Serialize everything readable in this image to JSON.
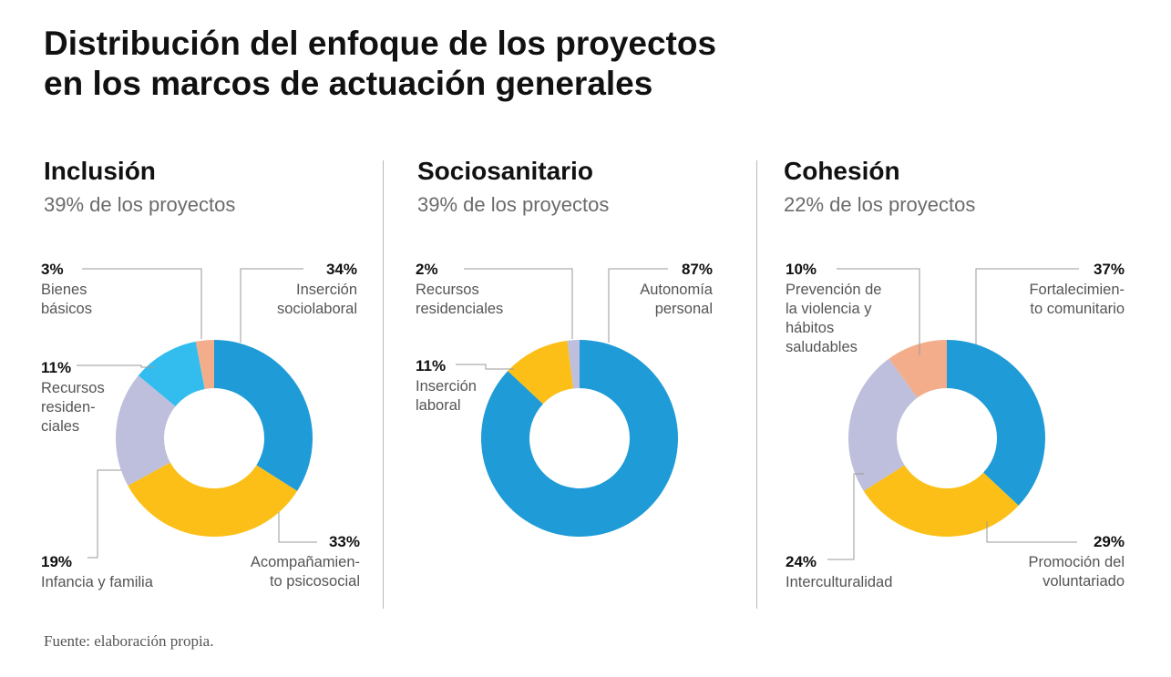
{
  "title_lines": [
    "Distribución del enfoque de los proyectos",
    "en los marcos de actuación generales"
  ],
  "source": "Fuente: elaboración propia.",
  "colors": {
    "blue": "#1f9bd7",
    "yellow": "#fbbf18",
    "lavender": "#bdbfdc",
    "cyan": "#32bdee",
    "salmon": "#f4ad8b",
    "leader": "#9a9a9a"
  },
  "chart_data": [
    {
      "type": "pie",
      "title": "Inclusión",
      "subtitle": "39% de los proyectos",
      "slices": [
        {
          "pct_label": "34%",
          "value": 34,
          "label_lines": [
            "Inserción",
            "sociolaboral"
          ],
          "color": "blue"
        },
        {
          "pct_label": "33%",
          "value": 33,
          "label_lines": [
            "Acompañamien-",
            "to psicosocial"
          ],
          "color": "yellow"
        },
        {
          "pct_label": "19%",
          "value": 19,
          "label_lines": [
            "Infancia y familia"
          ],
          "color": "lavender"
        },
        {
          "pct_label": "11%",
          "value": 11,
          "label_lines": [
            "Recursos",
            "residen-",
            "ciales"
          ],
          "color": "cyan"
        },
        {
          "pct_label": "3%",
          "value": 3,
          "label_lines": [
            "Bienes",
            "básicos"
          ],
          "color": "salmon"
        }
      ]
    },
    {
      "type": "pie",
      "title": "Sociosanitario",
      "subtitle": "39% de los proyectos",
      "slices": [
        {
          "pct_label": "87%",
          "value": 87,
          "label_lines": [
            "Autonomía",
            "personal"
          ],
          "color": "blue"
        },
        {
          "pct_label": "11%",
          "value": 11,
          "label_lines": [
            "Inserción",
            "laboral"
          ],
          "color": "yellow"
        },
        {
          "pct_label": "2%",
          "value": 2,
          "label_lines": [
            "Recursos",
            "residenciales"
          ],
          "color": "lavender"
        }
      ]
    },
    {
      "type": "pie",
      "title": "Cohesión",
      "subtitle": "22% de los proyectos",
      "slices": [
        {
          "pct_label": "37%",
          "value": 37,
          "label_lines": [
            "Fortalecimien-",
            "to comunitario"
          ],
          "color": "blue"
        },
        {
          "pct_label": "29%",
          "value": 29,
          "label_lines": [
            "Promoción del",
            "voluntariado"
          ],
          "color": "yellow"
        },
        {
          "pct_label": "24%",
          "value": 24,
          "label_lines": [
            "Interculturalidad"
          ],
          "color": "lavender"
        },
        {
          "pct_label": "10%",
          "value": 10,
          "label_lines": [
            "Prevención de",
            "la violencia y",
            "hábitos",
            "saludables"
          ],
          "color": "salmon"
        }
      ]
    }
  ]
}
